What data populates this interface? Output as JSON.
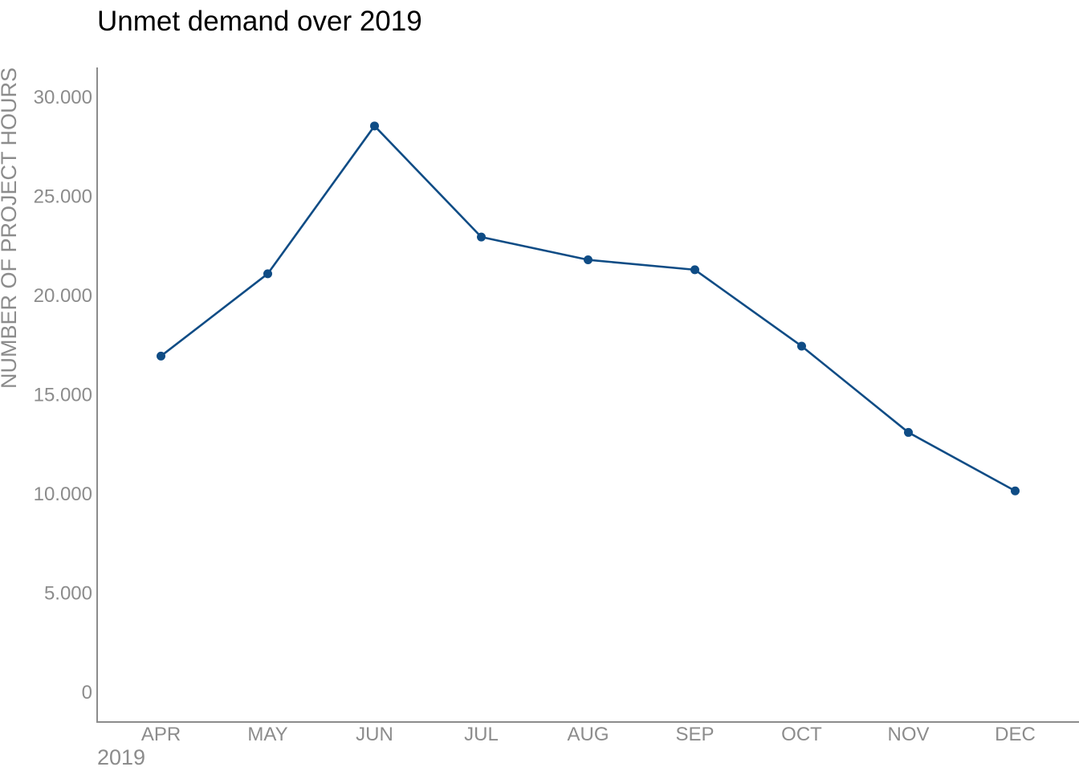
{
  "chart_data": {
    "type": "line",
    "title": "Unmet demand over 2019",
    "xlabel": "2019",
    "ylabel": "NUMBER OF PROJECT HOURS",
    "categories": [
      "APR",
      "MAY",
      "JUN",
      "JUL",
      "AUG",
      "SEP",
      "OCT",
      "NOV",
      "DEC"
    ],
    "series": [
      {
        "values": [
          16950,
          21100,
          28550,
          22950,
          21800,
          21300,
          17450,
          13100,
          10150
        ],
        "color": "#0f4c85"
      }
    ],
    "yticks": [
      0,
      5000,
      10000,
      15000,
      20000,
      25000,
      30000
    ],
    "ytick_labels": [
      "0",
      "5.000",
      "10.000",
      "15.000",
      "20.000",
      "25.000",
      "30.000"
    ],
    "ylim": [
      0,
      30000
    ],
    "grid": false,
    "legend": "none"
  }
}
